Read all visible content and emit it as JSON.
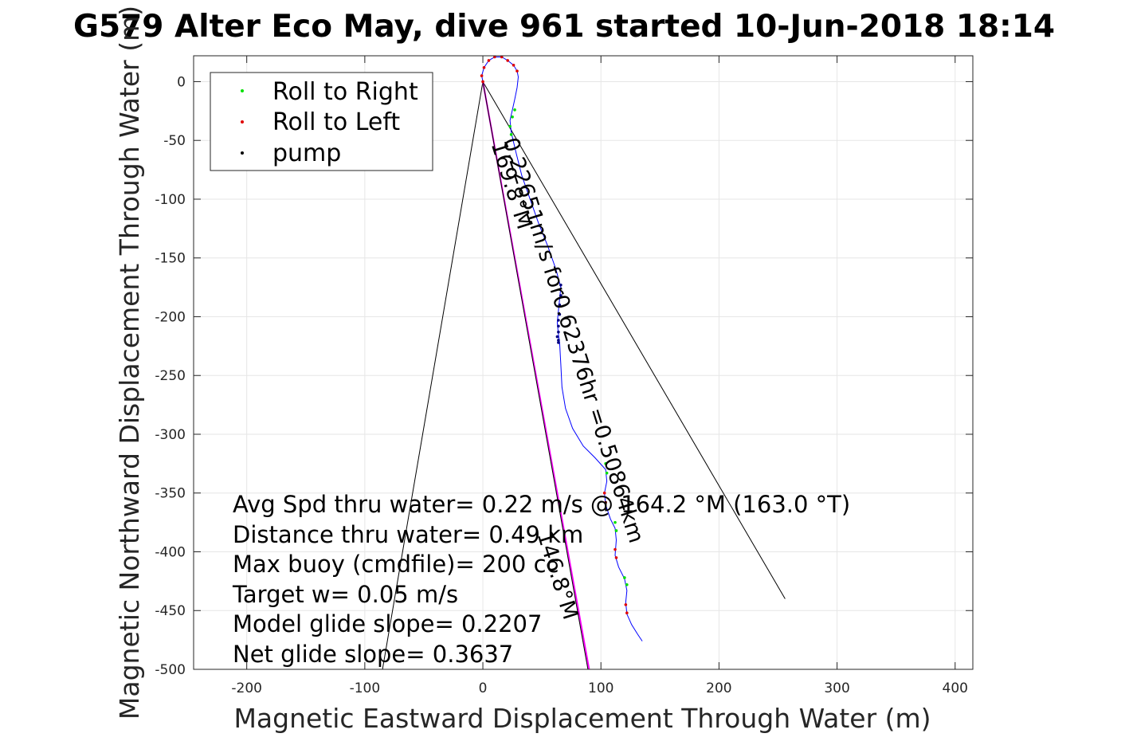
{
  "chart_data": {
    "type": "line",
    "title": "G579 Alter Eco May, dive 961 started 10-Jun-2018 18:14",
    "xlabel": "Magnetic Eastward Displacement Through Water (m)",
    "ylabel": "Magnetic Northward Displacement Through Water (m)",
    "xlim": [
      -245,
      415
    ],
    "ylim": [
      -500,
      22
    ],
    "xticks": [
      -200,
      -100,
      0,
      100,
      200,
      300,
      400
    ],
    "yticks": [
      0,
      -50,
      -100,
      -150,
      -200,
      -250,
      -300,
      -350,
      -400,
      -450,
      -500
    ],
    "grid": true,
    "legend": {
      "placement": "top-left",
      "entries": [
        {
          "label": "Roll to Right",
          "color": "#00e000"
        },
        {
          "label": "Roll to Left",
          "color": "#e00000"
        },
        {
          "label": "pump",
          "color": "#000000"
        }
      ]
    },
    "track": {
      "color": "#0000ff",
      "x": [
        0,
        -1,
        1,
        5,
        10,
        16,
        21,
        26,
        29,
        30,
        29,
        27,
        25,
        23,
        24,
        28,
        33,
        40,
        47,
        55,
        62,
        66,
        65,
        64,
        63,
        64,
        65,
        66,
        67,
        70,
        76,
        85,
        95,
        104,
        105,
        103,
        104,
        108,
        112,
        113,
        112,
        115,
        120,
        122,
        121,
        122,
        126,
        131,
        135
      ],
      "y": [
        0,
        5,
        12,
        18,
        21,
        21,
        18,
        14,
        9,
        4,
        -5,
        -15,
        -24,
        -33,
        -43,
        -60,
        -80,
        -100,
        -120,
        -140,
        -160,
        -175,
        -185,
        -195,
        -205,
        -215,
        -222,
        -240,
        -260,
        -278,
        -295,
        -310,
        -320,
        -330,
        -340,
        -350,
        -360,
        -372,
        -380,
        -390,
        -403,
        -413,
        -423,
        -433,
        -443,
        -453,
        -462,
        -470,
        -476
      ]
    },
    "markers": {
      "roll_right": {
        "color": "#00e000",
        "x": [
          27,
          25,
          23,
          24,
          104,
          105,
          112,
          113,
          120,
          122
        ],
        "y": [
          -24,
          -30,
          -38,
          -45,
          -325,
          -333,
          -375,
          -382,
          -422,
          -428
        ]
      },
      "roll_left": {
        "color": "#e00000",
        "x": [
          0,
          -1,
          1,
          5,
          10,
          16,
          21,
          26,
          29,
          103,
          104,
          112,
          113,
          121,
          122
        ],
        "y": [
          0,
          5,
          12,
          18,
          21,
          21,
          18,
          14,
          9,
          -350,
          -358,
          -398,
          -405,
          -445,
          -452
        ]
      },
      "pump": {
        "color": "#000080",
        "x": [
          66,
          66,
          65,
          65,
          64,
          64,
          64,
          63,
          64,
          64
        ],
        "y": [
          -173,
          -182,
          -190,
          -198,
          -203,
          -208,
          -213,
          -217,
          -220,
          -222
        ]
      }
    },
    "lines": [
      {
        "name": "avg-heading",
        "color": "#000000",
        "x": [
          0,
          256
        ],
        "y": [
          0,
          -440
        ]
      },
      {
        "name": "left-line",
        "color": "#000000",
        "x": [
          0,
          -85
        ],
        "y": [
          0,
          -500
        ]
      },
      {
        "name": "course-line",
        "color": "#ff00ff",
        "x": [
          0,
          90
        ],
        "y": [
          0,
          -500
        ]
      },
      {
        "name": "course-line-overlay",
        "color": "#000000",
        "x": [
          0,
          89
        ],
        "y": [
          0,
          -500
        ]
      }
    ],
    "annotations": [
      {
        "text": "0.22651m/s for0.62376hr =0.50864km",
        "x": 17,
        "y": -50,
        "rotation": 72.5
      },
      {
        "text": "169.8°M",
        "x": 7,
        "y": -53,
        "rotation": 72.5
      },
      {
        "text": "146.8°M",
        "x": 46,
        "y": -385,
        "rotation": 72.5
      }
    ],
    "stats": [
      "Avg Spd thru water=  0.22 m/s @ 164.2 °M (163.0 °T)",
      "Distance thru water=  0.49 km",
      "Max buoy (cmdfile)= 200 cc",
      "Target w= 0.05 m/s",
      "Model glide slope= 0.2207",
      "Net glide slope= 0.3637"
    ]
  }
}
